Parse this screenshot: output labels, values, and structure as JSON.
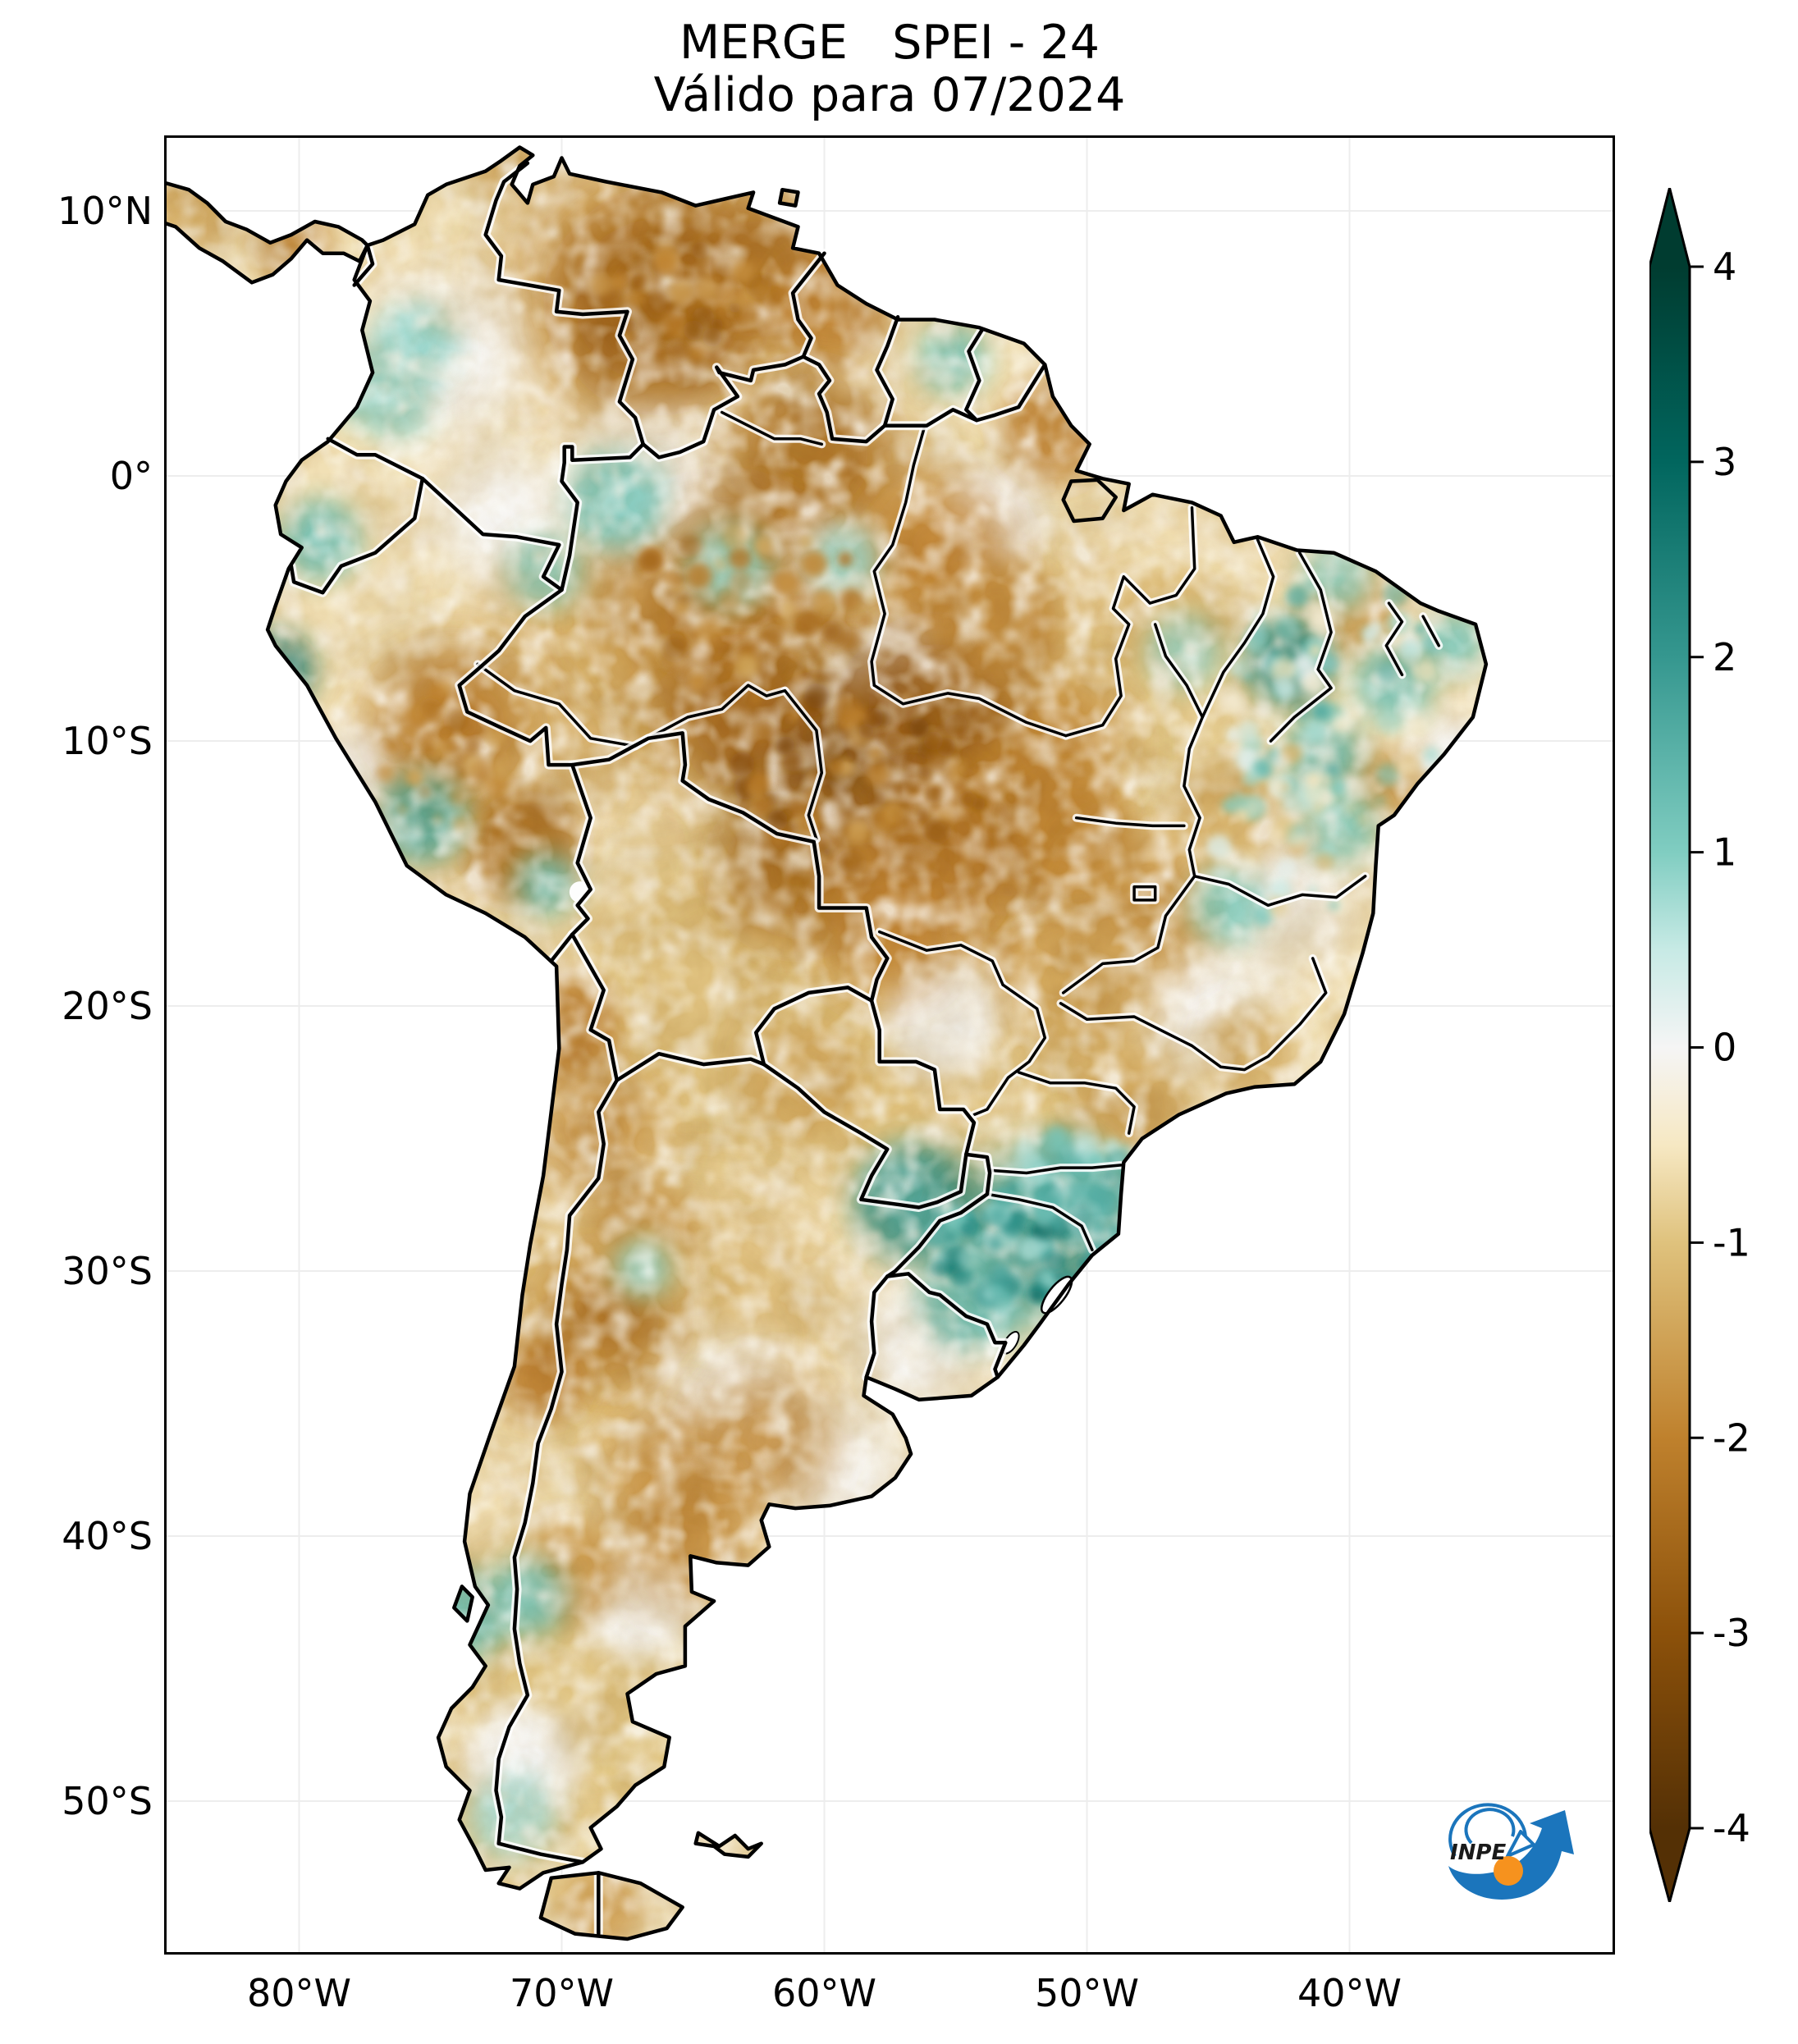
{
  "figure": {
    "title_line1": "MERGE   SPEI - 24",
    "title_line2": "Válido para 07/2024"
  },
  "logo": {
    "label": "INPE",
    "blue": "#1b75bc",
    "orange": "#f6921e",
    "text_color": "#1a1a1a"
  },
  "chart_data": {
    "type": "heatmap",
    "subtype": "geospatial-map",
    "title": "MERGE   SPEI - 24",
    "subtitle": "Válido para 07/2024",
    "index_name": "SPEI-24",
    "valid_month": "07/2024",
    "source_logo": "INPE",
    "projection": "PlateCarree",
    "lon_range": [
      -85.14,
      -29.89
    ],
    "lat_range": [
      -55.78,
      12.85
    ],
    "grid_on": true,
    "x_ticks": [
      {
        "label": "80°W",
        "lon": -80
      },
      {
        "label": "70°W",
        "lon": -70
      },
      {
        "label": "60°W",
        "lon": -60
      },
      {
        "label": "50°W",
        "lon": -50
      },
      {
        "label": "40°W",
        "lon": -40
      }
    ],
    "y_ticks": [
      {
        "label": "10°N",
        "lat": 10
      },
      {
        "label": "0°",
        "lat": 0
      },
      {
        "label": "10°S",
        "lat": -10
      },
      {
        "label": "20°S",
        "lat": -20
      },
      {
        "label": "30°S",
        "lat": -30
      },
      {
        "label": "40°S",
        "lat": -40
      },
      {
        "label": "50°S",
        "lat": -50
      }
    ],
    "colorbar": {
      "vmin": -4,
      "vmax": 4,
      "extend": "both",
      "ticks": [
        {
          "label": "4",
          "value": 4
        },
        {
          "label": "3",
          "value": 3
        },
        {
          "label": "2",
          "value": 2
        },
        {
          "label": "1",
          "value": 1
        },
        {
          "label": "0",
          "value": 0
        },
        {
          "label": "-1",
          "value": -1
        },
        {
          "label": "-2",
          "value": -2
        },
        {
          "label": "-3",
          "value": -3
        },
        {
          "label": "-4",
          "value": -4
        }
      ],
      "colormap_name": "BrBG",
      "stops": [
        {
          "value": -4,
          "color": "#543005"
        },
        {
          "value": -3,
          "color": "#8c510a"
        },
        {
          "value": -2,
          "color": "#bf812d"
        },
        {
          "value": -1,
          "color": "#dfc27d"
        },
        {
          "value": -0.5,
          "color": "#f6e8c3"
        },
        {
          "value": 0,
          "color": "#f5f5f5"
        },
        {
          "value": 0.5,
          "color": "#c7eae5"
        },
        {
          "value": 1,
          "color": "#80cdc1"
        },
        {
          "value": 2,
          "color": "#35978f"
        },
        {
          "value": 3,
          "color": "#01665e"
        },
        {
          "value": 4,
          "color": "#003c30"
        }
      ]
    },
    "land_base_value": -0.6,
    "ocean_color": "#ffffff",
    "regions_format": [
      "lon",
      "lat",
      "radius_deg",
      "spei_value"
    ],
    "regions": [
      [
        -63,
        -20,
        7,
        -1.1
      ],
      [
        -65,
        -33,
        6,
        -1.2
      ],
      [
        -69,
        -46,
        6,
        -1.0
      ],
      [
        -71.2,
        -31,
        4,
        -1.2
      ],
      [
        -67,
        -6,
        6,
        -1.4
      ],
      [
        -59,
        -5,
        6,
        -1.6
      ],
      [
        -52,
        -8,
        5,
        -1.4
      ],
      [
        -52,
        -16,
        5,
        -1.7
      ],
      [
        -46,
        -9,
        5,
        -0.9
      ],
      [
        -44,
        -17,
        5,
        -0.7
      ],
      [
        -50,
        -23,
        4,
        -1.1
      ],
      [
        -67,
        7,
        5,
        -1.8
      ],
      [
        -74,
        -11,
        4,
        -1.5
      ],
      [
        -57.5,
        -23,
        4,
        -1.1
      ],
      [
        -72,
        -52,
        3,
        -0.9
      ],
      [
        -74.5,
        4.5,
        3,
        0
      ],
      [
        -66.8,
        -0.5,
        3,
        0
      ],
      [
        -72.3,
        -1.5,
        2.5,
        0
      ],
      [
        -63.5,
        -35.5,
        3,
        0
      ],
      [
        -59.5,
        -37.5,
        2.5,
        0
      ],
      [
        -67,
        -42.5,
        2.2,
        0
      ],
      [
        -71.5,
        -48.5,
        2.2,
        0
      ],
      [
        -45.5,
        -20,
        2.5,
        0
      ],
      [
        -42.5,
        -16,
        2.5,
        0
      ],
      [
        -55.5,
        -20.5,
        2.2,
        0
      ],
      [
        -56.5,
        -32.8,
        2.5,
        0
      ],
      [
        -60,
        -2.8,
        1.8,
        0
      ],
      [
        -53.5,
        -1.5,
        2,
        0
      ],
      [
        -77.8,
        -11,
        1.5,
        0
      ],
      [
        -36,
        -10.5,
        1.5,
        0
      ],
      [
        -57.5,
        -7,
        1.8,
        0
      ],
      [
        -49,
        -28.3,
        1.4,
        0
      ],
      [
        -66.3,
        6.6,
        3.8,
        -2.6
      ],
      [
        -62.5,
        7.8,
        3,
        -2.3
      ],
      [
        -59.8,
        6.3,
        2.2,
        -2.0
      ],
      [
        -71.9,
        11.6,
        1.4,
        -1.4
      ],
      [
        -60.6,
        0.8,
        3.2,
        -2.4
      ],
      [
        -63.8,
        -5,
        4,
        -2.3
      ],
      [
        -59.3,
        -11.3,
        4.2,
        -3.3
      ],
      [
        -63.3,
        -9.3,
        2.6,
        -2.5
      ],
      [
        -55.8,
        -8.8,
        3.2,
        -2.7
      ],
      [
        -53,
        -12.5,
        3.2,
        -2.3
      ],
      [
        -61,
        -14.8,
        2.8,
        -2.4
      ],
      [
        -56.5,
        -14.5,
        3,
        -2.2
      ],
      [
        -51,
        -10,
        2.4,
        -1.9
      ],
      [
        -50.5,
        -13.5,
        2.2,
        -1.9
      ],
      [
        -55.5,
        -2.8,
        2.6,
        -2.0
      ],
      [
        -53.3,
        -5.5,
        2.2,
        -1.8
      ],
      [
        -51.3,
        1.7,
        2,
        -2.0
      ],
      [
        -74.2,
        -9.3,
        2.6,
        -2.2
      ],
      [
        -71.4,
        -14,
        2.2,
        -2.4
      ],
      [
        -69.8,
        -20.8,
        2,
        -2.1
      ],
      [
        -68.6,
        -24.6,
        2.4,
        -1.8
      ],
      [
        -68.3,
        -31.8,
        2.4,
        -2.3
      ],
      [
        -70.8,
        -34,
        1.6,
        -2.0
      ],
      [
        -66.8,
        -28.5,
        2,
        -1.6
      ],
      [
        -65.4,
        -37.8,
        2.8,
        -1.8
      ],
      [
        -62.2,
        -36.4,
        2.4,
        -1.8
      ],
      [
        -65.2,
        -40.2,
        2.4,
        -1.8
      ],
      [
        -69.7,
        -41.3,
        2,
        -1.7
      ],
      [
        -47.8,
        -16.2,
        2.8,
        -1.7
      ],
      [
        -49.8,
        -19.5,
        2.4,
        -1.5
      ],
      [
        -44.8,
        -13,
        2,
        -1.3
      ],
      [
        -39.8,
        -5,
        1.8,
        -1.6
      ],
      [
        -38.8,
        -11.8,
        1.6,
        -1.5
      ],
      [
        -48.3,
        -23.8,
        2.2,
        -1.4
      ],
      [
        -43.8,
        -21.8,
        1.8,
        -1.3
      ],
      [
        -80.2,
        8.7,
        1.4,
        -1.9
      ],
      [
        -84.2,
        10.2,
        1.8,
        -1.4
      ],
      [
        -57.6,
        -17.3,
        2.4,
        -2.0
      ],
      [
        -60.8,
        -22.8,
        2.2,
        -1.4
      ],
      [
        -46.8,
        -5.5,
        2,
        -1.2
      ],
      [
        -68.5,
        -54,
        1.6,
        -1.6
      ],
      [
        -80.9,
        -7.3,
        1.4,
        2.6
      ],
      [
        -79.2,
        -2.4,
        1.5,
        1.3
      ],
      [
        -77.6,
        3.4,
        1.3,
        1.0
      ],
      [
        -75.6,
        4.9,
        1.6,
        0.9
      ],
      [
        -76.3,
        2.6,
        1.3,
        0.8
      ],
      [
        -75.3,
        -12.9,
        1.7,
        1.6
      ],
      [
        -70.6,
        -15.4,
        1.2,
        1.2
      ],
      [
        -56.6,
        -27.4,
        2.3,
        1.9
      ],
      [
        -52.4,
        -28.8,
        3,
        2.0
      ],
      [
        -54.4,
        -31,
        2,
        1.3
      ],
      [
        -50.8,
        -26.6,
        1.9,
        1.4
      ],
      [
        -48.8,
        -27.6,
        1.6,
        1.5
      ],
      [
        -42.3,
        -7,
        1.7,
        2.2
      ],
      [
        -40.5,
        -3.8,
        1.3,
        0.9
      ],
      [
        -38.3,
        -7.8,
        1.5,
        1.2
      ],
      [
        -41,
        -10.5,
        1.5,
        1.3
      ],
      [
        -40.3,
        -13.2,
        1.4,
        1.0
      ],
      [
        -44.6,
        -16.2,
        1.4,
        1.0
      ],
      [
        -36,
        -6.3,
        1.2,
        1.1
      ],
      [
        -63.6,
        -3.4,
        1.6,
        0.9
      ],
      [
        -67.9,
        -0.9,
        1.9,
        1.1
      ],
      [
        -70.6,
        -3.6,
        1.4,
        0.9
      ],
      [
        -55.1,
        4.4,
        1.3,
        1.1
      ],
      [
        -73.7,
        -43,
        1.7,
        1.3
      ],
      [
        -71.3,
        -42.3,
        1.5,
        1.2
      ],
      [
        -71.9,
        -50.6,
        1.7,
        0.7
      ],
      [
        -46.3,
        -6.6,
        1.4,
        0.8
      ],
      [
        -59.2,
        -3.2,
        1.3,
        0.8
      ],
      [
        -66.9,
        -29.9,
        1.1,
        0.9
      ]
    ],
    "speckle_clusters": [
      {
        "lon": -52.6,
        "lat": -28.9,
        "rx": 3.4,
        "ry": 2.3,
        "count": 70,
        "vmin": 0.6,
        "vmax": 2.9,
        "seed": 7
      },
      {
        "lon": -50.3,
        "lat": -26.2,
        "rx": 2.6,
        "ry": 1.6,
        "count": 36,
        "vmin": 0.4,
        "vmax": 2.2,
        "seed": 12
      },
      {
        "lon": -40.3,
        "lat": -8.3,
        "rx": 4.6,
        "ry": 4.4,
        "count": 80,
        "vmin": -0.8,
        "vmax": 1.9,
        "seed": 21
      },
      {
        "lon": -58.6,
        "lat": -11.4,
        "rx": 4.8,
        "ry": 3.4,
        "count": 70,
        "vmin": -3.4,
        "vmax": -1.5,
        "seed": 33
      },
      {
        "lon": -65.4,
        "lat": 6.7,
        "rx": 3.8,
        "ry": 2.2,
        "count": 40,
        "vmin": -3.0,
        "vmax": -1.5,
        "seed": 44
      },
      {
        "lon": -62.8,
        "lat": -5.2,
        "rx": 5.0,
        "ry": 3.2,
        "count": 55,
        "vmin": -2.8,
        "vmax": -1.2,
        "seed": 55
      },
      {
        "lon": -42.5,
        "lat": -13.5,
        "rx": 3.4,
        "ry": 3.4,
        "count": 45,
        "vmin": -1.4,
        "vmax": 1.4,
        "seed": 66
      },
      {
        "lon": -74.3,
        "lat": -10.5,
        "rx": 2.8,
        "ry": 2.8,
        "count": 30,
        "vmin": -2.6,
        "vmax": -1.2,
        "seed": 77
      }
    ]
  }
}
